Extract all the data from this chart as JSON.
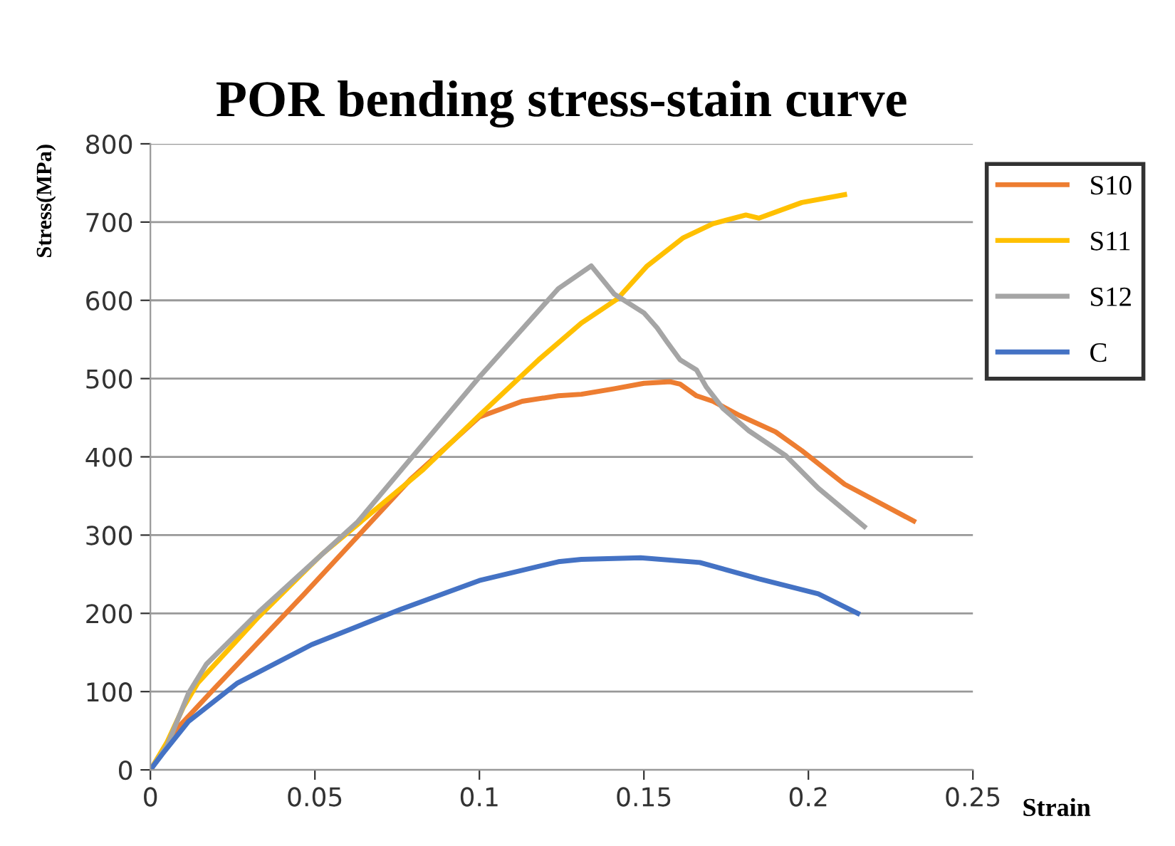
{
  "chart_data": {
    "type": "line",
    "title": "POR bending stress-stain curve",
    "xlabel": "Strain",
    "ylabel": "Stress(MPa)",
    "xlim": [
      0,
      0.25
    ],
    "xticks": [
      0,
      0.05,
      0.1,
      0.15,
      0.2,
      0.25
    ],
    "ylim": [
      0,
      800
    ],
    "yticks": [
      0,
      100,
      200,
      300,
      400,
      500,
      600,
      700,
      800
    ],
    "grid": "y",
    "legend": "right",
    "marker": "none",
    "line_style": "solid",
    "series": [
      {
        "name": "S10",
        "color": "#ed7d31",
        "x": [
          0,
          0.0088,
          0.0197,
          0.0466,
          0.079,
          0.1,
          0.113,
          0.124,
          0.131,
          0.141,
          0.15,
          0.158,
          0.161,
          0.166,
          0.171,
          0.179,
          0.19,
          0.198,
          0.211,
          0.232
        ],
        "values": [
          0,
          56,
          105,
          224,
          371,
          451,
          471,
          478,
          480,
          487,
          494,
          496,
          493,
          478,
          471,
          453,
          432,
          408,
          365,
          318
        ]
      },
      {
        "name": "S11",
        "color": "#ffc000",
        "x": [
          0,
          0.005,
          0.01,
          0.0144,
          0.033,
          0.052,
          0.083,
          0.1,
          0.118,
          0.131,
          0.142,
          0.151,
          0.162,
          0.171,
          0.181,
          0.185,
          0.198,
          0.211
        ],
        "values": [
          0,
          35,
          80,
          111,
          196,
          275,
          384,
          453,
          524,
          571,
          602,
          644,
          680,
          698,
          709,
          705,
          725,
          735
        ]
      },
      {
        "name": "S12",
        "color": "#a5a5a5",
        "x": [
          0,
          0.005,
          0.0116,
          0.017,
          0.033,
          0.063,
          0.1,
          0.124,
          0.134,
          0.141,
          0.15,
          0.154,
          0.157,
          0.161,
          0.166,
          0.169,
          0.174,
          0.182,
          0.193,
          0.203,
          0.217
        ],
        "values": [
          0,
          30,
          98,
          135,
          202,
          317,
          502,
          615,
          644,
          608,
          584,
          565,
          547,
          524,
          511,
          489,
          462,
          433,
          402,
          360,
          311
        ]
      },
      {
        "name": "C",
        "color": "#4472c4",
        "x": [
          0,
          0.0036,
          0.0116,
          0.0265,
          0.049,
          0.076,
          0.1,
          0.124,
          0.131,
          0.149,
          0.167,
          0.185,
          0.203,
          0.215
        ],
        "values": [
          0,
          20,
          62,
          111,
          160,
          205,
          242,
          266,
          269,
          271,
          265,
          244,
          225,
          200
        ]
      }
    ]
  }
}
